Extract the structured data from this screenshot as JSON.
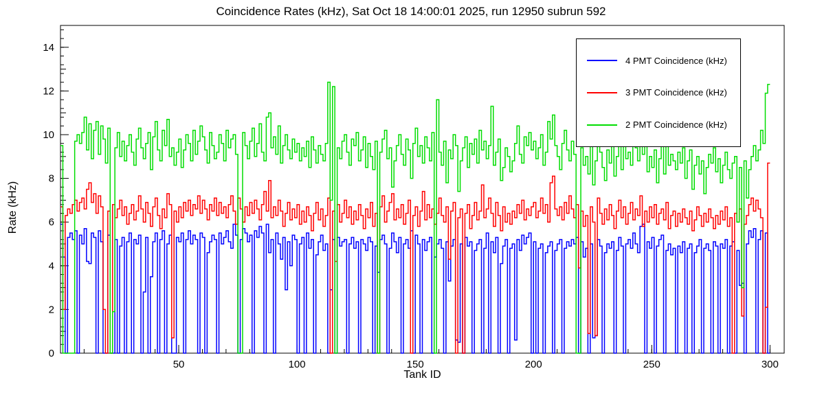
{
  "chart_data": {
    "type": "line",
    "style": "step-histogram",
    "title": "Coincidence Rates (kHz), Sat Oct 18 14:00:01 2025, run 12950 subrun 592",
    "xlabel": "Tank ID",
    "ylabel": "Rate (kHz)",
    "xlim": [
      0,
      306
    ],
    "ylim": [
      0,
      15
    ],
    "x_ticks": [
      50,
      100,
      150,
      200,
      250,
      300
    ],
    "y_ticks": [
      0,
      2,
      4,
      6,
      8,
      10,
      12,
      14
    ],
    "x_minor_step": 10,
    "y_minor_step": 0.4,
    "grid": false,
    "frame_color": "#000000",
    "legend": {
      "position": "top-right",
      "entries": [
        {
          "label": "4 PMT Coincidence (kHz)",
          "color": "#0000ff",
          "series": "four_pmt"
        },
        {
          "label": "3 PMT Coincidence (kHz)",
          "color": "#ff0000",
          "series": "three_pmt"
        },
        {
          "label": "2 PMT Coincidence (kHz)",
          "color": "#00dd00",
          "series": "two_pmt"
        }
      ]
    },
    "x_bin_start": 0,
    "series": [
      {
        "key": "four_pmt",
        "name": "4 PMT Coincidence (kHz)",
        "color": "#0000ff",
        "values": [
          5.9,
          4.4,
          0,
          5.3,
          5.5,
          5.2,
          5.6,
          0,
          5.4,
          5.0,
          5.7,
          4.2,
          4.1,
          5.5,
          5.3,
          0,
          5.6,
          5.1,
          0,
          0,
          5.4,
          0,
          0,
          5.2,
          0,
          4.9,
          5.3,
          0,
          5.1,
          5.5,
          0,
          5.2,
          5.0,
          5.4,
          0,
          2.8,
          5.3,
          0,
          3.5,
          5.1,
          5.5,
          0,
          5.2,
          5.6,
          0,
          5.0,
          5.4,
          0,
          0,
          5.3,
          5.1,
          5.5,
          0,
          5.2,
          5.6,
          5.0,
          5.4,
          5.2,
          0,
          5.5,
          5.3,
          0,
          4.6,
          5.1,
          5.4,
          5.2,
          0,
          5.5,
          5.0,
          5.3,
          5.6,
          5.1,
          4.8,
          5.9,
          5.4,
          0,
          5.2,
          5.7,
          5.5,
          5.1,
          5.4,
          0,
          5.6,
          5.3,
          5.8,
          5.5,
          0,
          5.9,
          4.6,
          5.2,
          0,
          5.5,
          5.0,
          4.3,
          5.3,
          2.9,
          5.1,
          4.0,
          5.4,
          5.2,
          0,
          5.0,
          5.3,
          0,
          5.5,
          4.8,
          5.2,
          0,
          4.5,
          5.1,
          5.4,
          4.7,
          5.0,
          0,
          2.9,
          5.2,
          0,
          5.3,
          4.9,
          5.1,
          5.2,
          0,
          5.0,
          5.3,
          4.8,
          5.1,
          0,
          5.2,
          5.0,
          4.7,
          5.3,
          5.1,
          0,
          4.9,
          3.7,
          5.2,
          5.4,
          5.0,
          0,
          4.8,
          5.5,
          5.1,
          4.6,
          5.3,
          0,
          5.0,
          5.2,
          4.8,
          5.6,
          0,
          5.4,
          5.0,
          0,
          5.2,
          4.7,
          5.1,
          5.3,
          0,
          4.4,
          5.0,
          5.2,
          4.8,
          0,
          5.1,
          3.3,
          4.9,
          5.2,
          0.6,
          0.5,
          5.0,
          0,
          5.3,
          4.9,
          5.1,
          0,
          4.7,
          5.0,
          5.2,
          0,
          4.8,
          5.5,
          0,
          5.1,
          4.6,
          5.3,
          0,
          4.1,
          4.9,
          5.2,
          0,
          4.8,
          5.0,
          0.6,
          5.2,
          4.7,
          5.4,
          5.0,
          5.3,
          5.5,
          0,
          5.1,
          0,
          4.8,
          5.0,
          0,
          4.6,
          4.9,
          5.1,
          0,
          4.7,
          5.0,
          5.2,
          0,
          4.8,
          5.1,
          4.9,
          5.2,
          5.0,
          5.3,
          0,
          5.1,
          4.4,
          4.8,
          0,
          5.0,
          0.7,
          0.8,
          5.2,
          4.9,
          0,
          4.6,
          5.0,
          4.8,
          5.1,
          0,
          4.7,
          5.3,
          4.9,
          0,
          5.0,
          5.2,
          4.8,
          5.5,
          5.0,
          4.6,
          5.8,
          5.9,
          0,
          5.1,
          4.8,
          5.3,
          0,
          4.9,
          5.2,
          5.4,
          0,
          4.7,
          5.0,
          4.5,
          4.8,
          0,
          4.9,
          4.6,
          5.1,
          0,
          4.8,
          5.0,
          0,
          4.6,
          4.9,
          5.2,
          0,
          4.8,
          5.0,
          4.7,
          0,
          5.1,
          4.9,
          0,
          5.0,
          4.8,
          5.2,
          0,
          4.9,
          5.1,
          0,
          4.7,
          3.1,
          3.2,
          0,
          5.0,
          5.6,
          5.3,
          5.7,
          0,
          5.2,
          5.6,
          0,
          5.5,
          0
        ]
      },
      {
        "key": "three_pmt",
        "name": "3 PMT Coincidence (kHz)",
        "color": "#ff0000",
        "values": [
          6.7,
          2.0,
          6.3,
          6.6,
          6.4,
          6.8,
          7.0,
          6.5,
          6.9,
          7.1,
          6.6,
          7.5,
          7.8,
          6.9,
          7.3,
          6.4,
          7.2,
          6.7,
          2.0,
          0,
          6.5,
          0,
          6.8,
          6.2,
          6.6,
          7.0,
          6.3,
          6.7,
          5.9,
          6.4,
          6.8,
          6.1,
          6.5,
          7.2,
          6.6,
          6.0,
          6.9,
          6.4,
          5.8,
          6.7,
          7.1,
          6.3,
          5.7,
          6.6,
          6.2,
          7.3,
          6.8,
          0.7,
          6.5,
          6.0,
          6.7,
          6.2,
          6.9,
          6.5,
          7.0,
          6.3,
          6.8,
          6.6,
          7.2,
          6.4,
          7.0,
          6.6,
          6.1,
          6.8,
          6.5,
          7.1,
          6.3,
          6.9,
          6.4,
          6.7,
          6.2,
          6.8,
          7.2,
          6.5,
          5.9,
          7.1,
          6.6,
          6.0,
          6.7,
          6.3,
          6.9,
          6.4,
          7.0,
          6.6,
          6.1,
          6.8,
          7.4,
          6.5,
          7.9,
          6.2,
          6.7,
          6.3,
          7.0,
          6.5,
          5.8,
          6.4,
          6.9,
          6.1,
          6.6,
          6.2,
          6.8,
          5.9,
          6.5,
          6.0,
          6.7,
          6.3,
          5.6,
          6.4,
          6.9,
          6.1,
          6.6,
          5.8,
          6.3,
          7.1,
          0,
          6.5,
          4.2,
          6.8,
          6.0,
          6.4,
          7.0,
          6.2,
          6.7,
          5.9,
          6.5,
          6.1,
          6.8,
          6.3,
          5.7,
          6.6,
          6.2,
          6.9,
          5.8,
          6.4,
          0,
          6.7,
          7.2,
          6.0,
          6.5,
          6.9,
          7.3,
          6.1,
          6.6,
          6.2,
          6.8,
          5.9,
          6.4,
          7.0,
          0,
          6.3,
          6.7,
          5.8,
          6.5,
          7.4,
          6.1,
          6.8,
          6.2,
          6.6,
          5.9,
          6.4,
          7.1,
          6.3,
          6.0,
          6.7,
          4.3,
          6.5,
          6.9,
          0,
          6.2,
          6.6,
          0,
          6.4,
          6.8,
          5.7,
          6.3,
          6.9,
          6.1,
          6.5,
          7.7,
          6.2,
          6.6,
          7.1,
          6.4,
          5.8,
          6.9,
          6.3,
          5.6,
          6.7,
          6.0,
          6.4,
          5.9,
          6.5,
          6.2,
          6.8,
          6.4,
          7.0,
          6.1,
          6.6,
          6.3,
          6.7,
          6.9,
          6.2,
          6.5,
          7.1,
          6.4,
          6.8,
          6.0,
          7.8,
          8.1,
          6.6,
          6.3,
          6.7,
          6.1,
          6.9,
          6.4,
          7.2,
          6.6,
          6.2,
          6.8,
          3.9,
          6.5,
          5.8,
          6.3,
          0.9,
          6.7,
          6.0,
          0.8,
          7.1,
          6.4,
          5.9,
          6.6,
          6.1,
          6.8,
          6.3,
          5.7,
          6.5,
          7.0,
          6.2,
          6.7,
          5.9,
          6.4,
          6.9,
          6.1,
          6.6,
          6.3,
          7.2,
          5.8,
          6.5,
          6.0,
          6.7,
          6.2,
          6.8,
          5.9,
          6.4,
          6.6,
          6.1,
          6.9,
          5.7,
          6.3,
          6.5,
          5.8,
          6.4,
          6.0,
          6.6,
          6.2,
          5.9,
          6.5,
          5.6,
          6.1,
          6.7,
          6.3,
          5.8,
          6.4,
          6.0,
          6.6,
          6.2,
          5.7,
          6.3,
          5.9,
          6.5,
          6.1,
          6.7,
          5.8,
          6.2,
          0,
          6.4,
          6.0,
          6.6,
          1.7,
          5.9,
          6.3,
          6.8,
          7.1,
          6.5,
          7.0,
          6.6,
          6.2,
          0,
          2.1,
          8.7
        ]
      },
      {
        "key": "two_pmt",
        "name": "2 PMT Coincidence (kHz)",
        "color": "#00dd00",
        "values": [
          9.5,
          0,
          0,
          0,
          0,
          0,
          9.7,
          10.0,
          9.6,
          10.1,
          10.8,
          9.3,
          10.5,
          8.9,
          10.2,
          10.6,
          9.1,
          10.4,
          9.8,
          8.7,
          10.3,
          0,
          1.9,
          9.4,
          10.1,
          9.0,
          9.7,
          8.8,
          9.5,
          10.0,
          9.2,
          8.6,
          9.8,
          10.3,
          9.4,
          8.9,
          9.6,
          10.1,
          8.4,
          9.9,
          10.6,
          9.3,
          8.8,
          10.2,
          9.5,
          10.7,
          9.0,
          9.4,
          8.6,
          9.2,
          9.8,
          8.5,
          9.3,
          10.0,
          9.6,
          8.8,
          10.2,
          9.1,
          9.7,
          10.4,
          9.9,
          9.3,
          8.7,
          10.1,
          9.5,
          8.9,
          9.2,
          10.0,
          9.6,
          8.8,
          10.2,
          9.4,
          9.8,
          10.0,
          9.1,
          0,
          0,
          10.1,
          9.5,
          8.9,
          9.7,
          10.3,
          9.0,
          9.6,
          10.5,
          9.2,
          8.8,
          10.8,
          11.0,
          9.4,
          9.9,
          9.1,
          10.4,
          8.7,
          9.5,
          10.0,
          9.3,
          8.9,
          9.8,
          9.2,
          9.6,
          8.8,
          9.4,
          9.0,
          9.7,
          8.5,
          9.9,
          9.3,
          8.7,
          9.5,
          9.1,
          8.8,
          9.6,
          12.4,
          7.0,
          12.2,
          0,
          9.4,
          8.9,
          9.7,
          10.0,
          9.2,
          8.6,
          9.8,
          9.5,
          10.1,
          8.8,
          9.3,
          9.9,
          8.5,
          9.6,
          9.0,
          8.4,
          9.7,
          0,
          9.2,
          9.8,
          10.2,
          8.9,
          9.4,
          7.6,
          8.8,
          9.5,
          10.0,
          9.1,
          8.6,
          9.8,
          9.3,
          8.0,
          9.6,
          10.3,
          9.0,
          9.5,
          8.7,
          9.9,
          9.4,
          8.8,
          10.1,
          0,
          11.6,
          9.2,
          8.6,
          9.7,
          7.8,
          9.3,
          8.9,
          10.0,
          9.5,
          7.4,
          8.8,
          9.4,
          9.9,
          8.5,
          9.6,
          9.1,
          9.8,
          8.7,
          10.2,
          9.3,
          9.7,
          8.9,
          9.5,
          11.3,
          8.6,
          9.2,
          9.8,
          7.9,
          8.5,
          9.4,
          9.0,
          8.3,
          8.8,
          9.6,
          10.4,
          9.1,
          8.7,
          9.9,
          9.5,
          10.1,
          9.3,
          9.7,
          8.9,
          9.4,
          10.0,
          8.6,
          9.2,
          10.6,
          9.8,
          10.9,
          9.5,
          9.0,
          8.4,
          9.6,
          10.2,
          9.3,
          8.8,
          9.7,
          9.1,
          0,
          0,
          9.4,
          8.6,
          9.0,
          8.2,
          9.5,
          7.7,
          8.8,
          10.3,
          9.2,
          8.5,
          7.9,
          9.3,
          8.7,
          9.6,
          8.1,
          9.0,
          9.8,
          8.4,
          9.5,
          8.9,
          9.2,
          8.6,
          9.9,
          9.4,
          8.8,
          10.7,
          9.1,
          9.6,
          8.3,
          9.0,
          8.5,
          9.3,
          7.8,
          8.9,
          9.5,
          8.2,
          9.7,
          8.6,
          9.1,
          8.8,
          8.4,
          9.2,
          8.7,
          9.4,
          8.0,
          8.8,
          9.3,
          7.5,
          8.6,
          9.0,
          8.2,
          8.8,
          7.3,
          8.5,
          9.1,
          8.7,
          9.4,
          8.3,
          8.9,
          7.8,
          8.6,
          9.2,
          8.4,
          8.0,
          8.7,
          9.0,
          6.0,
          8.5,
          3.0,
          8.8,
          7.1,
          8.4,
          9.0,
          9.5,
          8.8,
          9.3,
          10.2,
          9.6,
          11.9,
          12.3
        ]
      }
    ]
  }
}
